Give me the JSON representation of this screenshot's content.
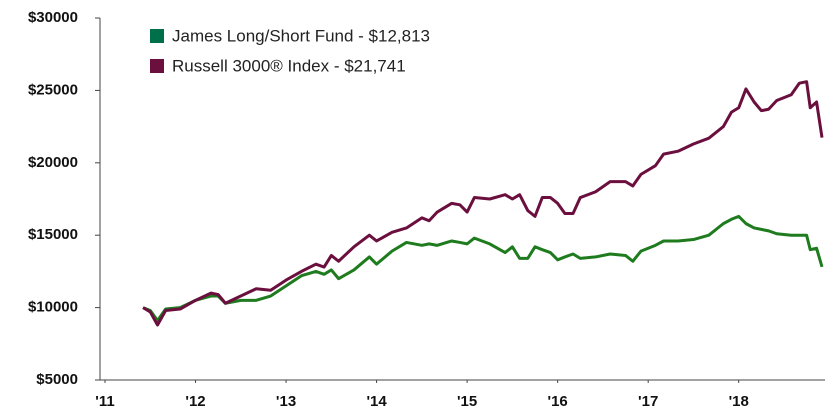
{
  "chart_data": {
    "type": "line",
    "x": [
      2011.42,
      2011.5,
      2011.58,
      2011.67,
      2011.83,
      2012.0,
      2012.17,
      2012.25,
      2012.33,
      2012.5,
      2012.67,
      2012.83,
      2013.0,
      2013.17,
      2013.33,
      2013.42,
      2013.5,
      2013.58,
      2013.75,
      2013.92,
      2014.0,
      2014.17,
      2014.33,
      2014.5,
      2014.58,
      2014.67,
      2014.83,
      2014.92,
      2015.0,
      2015.08,
      2015.25,
      2015.42,
      2015.5,
      2015.58,
      2015.67,
      2015.75,
      2015.83,
      2015.92,
      2016.0,
      2016.08,
      2016.17,
      2016.25,
      2016.42,
      2016.58,
      2016.75,
      2016.83,
      2016.92,
      2017.08,
      2017.17,
      2017.33,
      2017.5,
      2017.67,
      2017.83,
      2017.92,
      2018.0,
      2018.08,
      2018.17,
      2018.25,
      2018.33,
      2018.42,
      2018.58,
      2018.67,
      2018.75,
      2018.79,
      2018.86,
      2018.92
    ],
    "series": [
      {
        "name": "James Long/Short Fund - $12,813",
        "color": "#1e7b1e",
        "legend_color": "#00704a",
        "values": [
          10000,
          9800,
          9100,
          9900,
          10000,
          10500,
          10800,
          10800,
          10300,
          10500,
          10500,
          10800,
          11500,
          12200,
          12500,
          12300,
          12600,
          12000,
          12600,
          13500,
          13000,
          13900,
          14500,
          14300,
          14400,
          14300,
          14600,
          14500,
          14400,
          14800,
          14400,
          13800,
          14200,
          13400,
          13400,
          14200,
          14000,
          13800,
          13300,
          13500,
          13700,
          13400,
          13500,
          13700,
          13600,
          13200,
          13900,
          14300,
          14600,
          14600,
          14700,
          15000,
          15800,
          16100,
          16300,
          15800,
          15500,
          15400,
          15300,
          15100,
          15000,
          15000,
          15000,
          14000,
          14100,
          12813
        ]
      },
      {
        "name": "Russell 3000® Index - $21,741",
        "color": "#6b0f3e",
        "legend_color": "#6b0f3e",
        "values": [
          10000,
          9700,
          8800,
          9800,
          9900,
          10500,
          11000,
          10900,
          10300,
          10800,
          11300,
          11200,
          11900,
          12500,
          13000,
          12800,
          13600,
          13200,
          14200,
          15000,
          14600,
          15200,
          15500,
          16200,
          16000,
          16600,
          17200,
          17100,
          16600,
          17600,
          17500,
          17800,
          17500,
          17800,
          16700,
          16300,
          17600,
          17600,
          17200,
          16500,
          16500,
          17600,
          18000,
          18700,
          18700,
          18400,
          19200,
          19800,
          20600,
          20800,
          21300,
          21700,
          22500,
          23500,
          23800,
          25100,
          24200,
          23600,
          23700,
          24300,
          24700,
          25500,
          25600,
          23800,
          24200,
          21741
        ]
      }
    ],
    "xlim": [
      2011,
      2018.92
    ],
    "xticks": [
      {
        "value": 2011,
        "label": "'11"
      },
      {
        "value": 2012,
        "label": "'12"
      },
      {
        "value": 2013,
        "label": "'13"
      },
      {
        "value": 2014,
        "label": "'14"
      },
      {
        "value": 2015,
        "label": "'15"
      },
      {
        "value": 2016,
        "label": "'16"
      },
      {
        "value": 2017,
        "label": "'17"
      },
      {
        "value": 2018,
        "label": "'18"
      }
    ],
    "ylim": [
      5000,
      30000
    ],
    "yticks": [
      {
        "value": 5000,
        "label": "$5000"
      },
      {
        "value": 10000,
        "label": "$10000"
      },
      {
        "value": 15000,
        "label": "$15000"
      },
      {
        "value": 20000,
        "label": "$20000"
      },
      {
        "value": 25000,
        "label": "$25000"
      },
      {
        "value": 30000,
        "label": "$30000"
      }
    ],
    "grid": false
  }
}
